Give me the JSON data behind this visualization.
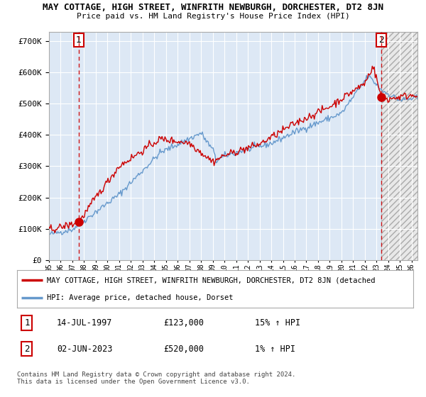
{
  "title": "MAY COTTAGE, HIGH STREET, WINFRITH NEWBURGH, DORCHESTER, DT2 8JN",
  "subtitle": "Price paid vs. HM Land Registry's House Price Index (HPI)",
  "legend_line1": "MAY COTTAGE, HIGH STREET, WINFRITH NEWBURGH, DORCHESTER, DT2 8JN (detached",
  "legend_line2": "HPI: Average price, detached house, Dorset",
  "table_row1": [
    "1",
    "14-JUL-1997",
    "£123,000",
    "15% ↑ HPI"
  ],
  "table_row2": [
    "2",
    "02-JUN-2023",
    "£520,000",
    "1% ↑ HPI"
  ],
  "footer": "Contains HM Land Registry data © Crown copyright and database right 2024.\nThis data is licensed under the Open Government Licence v3.0.",
  "sale1_year": 1997.54,
  "sale1_price": 123000,
  "sale2_year": 2023.42,
  "sale2_price": 520000,
  "hpi_color": "#6699cc",
  "price_color": "#cc0000",
  "plot_bg": "#dde8f5",
  "hatch_bg": "#c8c8c8",
  "grid_color": "#ffffff",
  "ylim": [
    0,
    730000
  ],
  "xlim_start": 1995.0,
  "xlim_end": 2026.5,
  "sale2_xend": 2024.5
}
